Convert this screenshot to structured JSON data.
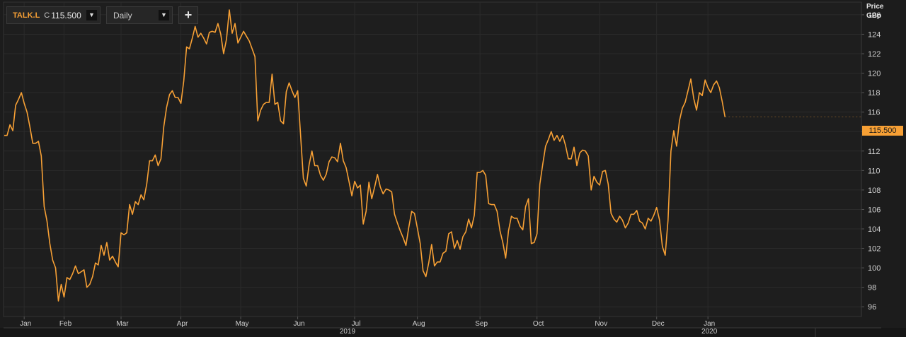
{
  "toolbar": {
    "symbol": "TALK.L",
    "close_label": "C",
    "close_value": "115.500",
    "period": "Daily",
    "add_label": "+"
  },
  "axis": {
    "title_line1": "Price",
    "title_line2": "GBp"
  },
  "last_price_label": "115.500",
  "colors": {
    "background": "#1c1c1c",
    "line": "#f7a035",
    "grid": "#2b2b2b",
    "price_tag": "#f7a035"
  },
  "chart_data": {
    "type": "line",
    "title": "",
    "xlabel": "",
    "ylabel": "Price GBp",
    "ylim": [
      95,
      127.3
    ],
    "y_ticks": [
      96,
      98,
      100,
      102,
      104,
      106,
      108,
      110,
      112,
      114,
      116,
      118,
      120,
      122,
      124,
      126
    ],
    "x_ticks": [
      {
        "label": "Jan",
        "t": 7
      },
      {
        "label": "Feb",
        "t": 21
      },
      {
        "label": "Mar",
        "t": 41
      },
      {
        "label": "Apr",
        "t": 62
      },
      {
        "label": "May",
        "t": 83
      },
      {
        "label": "Jun",
        "t": 103
      },
      {
        "label": "Jul",
        "t": 123
      },
      {
        "label": "Aug",
        "t": 145
      },
      {
        "label": "Sep",
        "t": 167
      },
      {
        "label": "Oct",
        "t": 187
      },
      {
        "label": "Nov",
        "t": 209
      },
      {
        "label": "Dec",
        "t": 229
      },
      {
        "label": "Jan",
        "t": 247
      }
    ],
    "year_labels": [
      {
        "label": "2019",
        "t": 120
      },
      {
        "label": "2020",
        "t": 247
      }
    ],
    "grid": true,
    "series": [
      {
        "values": [
          113.6,
          113.6,
          114.7,
          114.1,
          116.7,
          117.3,
          118,
          116.9,
          116,
          114.5,
          112.8,
          112.8,
          113,
          111.5,
          106.3,
          104.8,
          102.5,
          100.8,
          100,
          96.6,
          98.3,
          97,
          99,
          98.8,
          99.4,
          100.2,
          99.4,
          99.6,
          99.8,
          98,
          98.3,
          99.1,
          100.5,
          100.3,
          102.3,
          101.3,
          102.6,
          100.8,
          101.2,
          100.6,
          100.1,
          103.6,
          103.4,
          103.6,
          106.5,
          105.5,
          106.8,
          106.5,
          107.5,
          107,
          108.6,
          111,
          111,
          111.6,
          110.5,
          111.2,
          114.5,
          116.5,
          117.8,
          118.2,
          117.5,
          117.5,
          116.9,
          119.2,
          122.7,
          122.5,
          123.6,
          124.8,
          123.7,
          124.1,
          123.6,
          123,
          124.2,
          124.3,
          124.2,
          125.1,
          124,
          122,
          123.5,
          126.5,
          124.1,
          125.1,
          123.1,
          123.7,
          124.3,
          123.8,
          123.3,
          122.5,
          121.7,
          115.1,
          116.2,
          116.8,
          117,
          117,
          119.9,
          116.8,
          117,
          115.1,
          114.8,
          118.1,
          119,
          118.2,
          117.5,
          118.2,
          113.7,
          109.2,
          108.4,
          110.6,
          112,
          110.5,
          110.5,
          109.5,
          109,
          109.6,
          110.9,
          111.4,
          111.3,
          110.9,
          112.8,
          111,
          110.3,
          108.9,
          107.4,
          108.9,
          108.2,
          108.5,
          104.5,
          105.8,
          108.8,
          107.1,
          108.3,
          109.6,
          108.3,
          107.6,
          108.1,
          108,
          107.8,
          105.5,
          104.6,
          103.8,
          103.1,
          102.3,
          104.2,
          105.8,
          105.6,
          104.1,
          102.5,
          99.7,
          99.1,
          100.5,
          102.4,
          100.2,
          100.6,
          100.6,
          101.5,
          101.7,
          103.5,
          103.7,
          102,
          102.8,
          101.9,
          103.2,
          103.7,
          105,
          104.1,
          105.4,
          109.8,
          109.8,
          110,
          109.5,
          106.6,
          106.5,
          106.5,
          105.8,
          103.8,
          102.6,
          101,
          103.8,
          105.3,
          105.1,
          105.1,
          104.3,
          103.9,
          106.3,
          107.1,
          102.5,
          102.6,
          103.5,
          108.6,
          110.6,
          112.5,
          113.2,
          114,
          113.1,
          113.6,
          113,
          113.6,
          112.6,
          111.2,
          111.2,
          112.4,
          110.5,
          111.8,
          112.1,
          112,
          111.5,
          108,
          109.4,
          108.8,
          108.5,
          109.9,
          110,
          108.6,
          105.6,
          105,
          104.7,
          105.3,
          104.9,
          104.1,
          104.6,
          105.5,
          105.5,
          105.9,
          104.8,
          104.6,
          104,
          105.1,
          104.8,
          105.4,
          106.2,
          104.9,
          102.2,
          101.3,
          104.9,
          112,
          114.1,
          112.5,
          115.1,
          116.4,
          117,
          118.2,
          119.4,
          117.4,
          116.2,
          118,
          117.7,
          119.3,
          118.5,
          118,
          118.8,
          119.2,
          118.5,
          117.1,
          115.5
        ]
      }
    ]
  }
}
